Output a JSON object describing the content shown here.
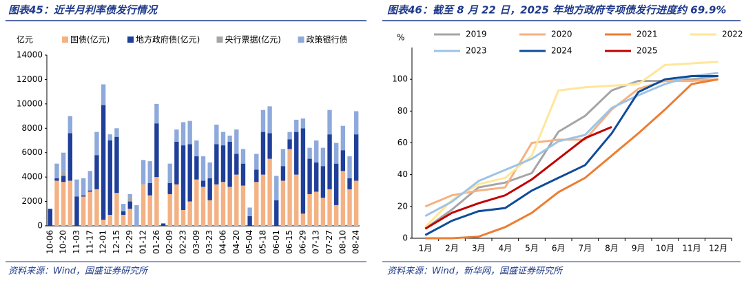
{
  "chart_data": [
    {
      "type": "bar",
      "title": "图表45：近半月利率债发行情况",
      "source": "资料来源：Wind，国盛证券研究所",
      "ylabel": "亿元",
      "stacked": true,
      "categories": [
        "10-06",
        null,
        "10-20",
        null,
        "11-03",
        null,
        "11-17",
        null,
        "12-01",
        null,
        "12-15",
        null,
        "12-29",
        null,
        "01-12",
        null,
        "01-26",
        null,
        "02-09",
        null,
        "02-23",
        null,
        "03-09",
        null,
        "03-23",
        null,
        "04-06",
        null,
        "04-20",
        null,
        "05-04",
        null,
        "05-18",
        null,
        "06-01",
        null,
        "06-15",
        null,
        "06-29",
        null,
        "07-13",
        null,
        "07-27",
        null,
        "08-10",
        null,
        "08-24"
      ],
      "series": [
        {
          "name": "国债(亿元)",
          "color": "#f4b183",
          "values": [
            0,
            3700,
            3600,
            3700,
            0,
            2400,
            2800,
            3000,
            500,
            900,
            2700,
            900,
            1400,
            0,
            3400,
            2500,
            4000,
            0,
            2600,
            3400,
            1300,
            2000,
            3800,
            3200,
            2100,
            3400,
            3600,
            3200,
            4200,
            3300,
            0,
            3600,
            4200,
            5500,
            0,
            3700,
            6300,
            4200,
            1000,
            2600,
            2800,
            2300,
            3000,
            1700,
            4500,
            3000,
            3700
          ]
        },
        {
          "name": "地方政府债(亿元)",
          "color": "#1f3f99",
          "values": [
            1400,
            200,
            500,
            3900,
            2400,
            100,
            100,
            2800,
            9400,
            6100,
            4600,
            300,
            600,
            0,
            0,
            1000,
            4400,
            200,
            900,
            3500,
            5300,
            4700,
            1900,
            500,
            1800,
            3300,
            3000,
            3700,
            1700,
            1800,
            800,
            1000,
            3500,
            2100,
            2100,
            1200,
            800,
            3500,
            7000,
            2900,
            2400,
            2600,
            4500,
            3400,
            1700,
            900,
            3800
          ]
        },
        {
          "name": "央行票据(亿元)",
          "color": "#a5a5a5",
          "values": [
            0,
            0,
            400,
            0,
            0,
            0,
            0,
            0,
            0,
            0,
            0,
            0,
            300,
            0,
            0,
            0,
            0,
            0,
            0,
            0,
            0,
            0,
            0,
            0,
            0,
            0,
            0,
            0,
            0,
            0,
            0,
            0,
            0,
            0,
            0,
            0,
            0,
            0,
            0,
            0,
            0,
            0,
            0,
            0,
            0,
            0,
            0
          ]
        },
        {
          "name": "政策银行债",
          "color": "#8ea9db",
          "values": [
            0,
            1200,
            1500,
            1400,
            1400,
            1400,
            1600,
            1900,
            1700,
            500,
            700,
            600,
            300,
            1700,
            2000,
            1800,
            1600,
            0,
            1600,
            1000,
            1900,
            1900,
            1300,
            2000,
            1300,
            1600,
            1100,
            500,
            2000,
            1200,
            700,
            1300,
            1800,
            2200,
            2000,
            1400,
            600,
            1000,
            800,
            900,
            1800,
            1500,
            2000,
            1700,
            2000,
            1800,
            1900
          ]
        }
      ],
      "ylim": [
        0,
        14000
      ],
      "yticks": [
        0,
        2000,
        4000,
        6000,
        8000,
        10000,
        12000,
        14000
      ]
    },
    {
      "type": "line",
      "title": "图表46：截至 8 月 22 日，2025 年地方政府专项债发行进度约 69.9%",
      "source": "资料来源：Wind，新华网，国盛证券研究所",
      "ylabel": "%",
      "categories": [
        "1月",
        "2月",
        "3月",
        "4月",
        "5月",
        "6月",
        "7月",
        "8月",
        "9月",
        "10月",
        "11月",
        "12月"
      ],
      "series": [
        {
          "name": "2019",
          "color": "#a5a5a5",
          "values": [
            6,
            18,
            32,
            35,
            41,
            67,
            77,
            93,
            99,
            99,
            100,
            102
          ]
        },
        {
          "name": "2020",
          "color": "#f4b183",
          "values": [
            20,
            27,
            30,
            32,
            60,
            62,
            62,
            81,
            94,
            99,
            99,
            100
          ]
        },
        {
          "name": "2021",
          "color": "#ed7d31",
          "values": [
            0,
            0,
            1,
            7,
            16,
            29,
            38,
            52,
            66,
            81,
            97,
            100
          ]
        },
        {
          "name": "2022",
          "color": "#ffe699",
          "values": [
            7,
            24,
            34,
            38,
            52,
            93,
            95,
            96,
            97,
            109,
            110,
            111
          ]
        },
        {
          "name": "2023",
          "color": "#9dc3e6",
          "values": [
            14,
            23,
            36,
            43,
            50,
            61,
            65,
            82,
            90,
            97,
            102,
            104
          ]
        },
        {
          "name": "2024",
          "color": "#0e4c9a",
          "values": [
            2,
            11,
            17,
            19,
            30,
            38,
            46,
            66,
            92,
            100,
            102,
            102
          ]
        },
        {
          "name": "2025",
          "color": "#c00000",
          "values": [
            6,
            16,
            22,
            27,
            37,
            50,
            63,
            70,
            null,
            null,
            null,
            null
          ]
        }
      ],
      "ylim": [
        0,
        120
      ],
      "yticks": [
        0,
        20,
        40,
        60,
        80,
        100
      ]
    }
  ]
}
